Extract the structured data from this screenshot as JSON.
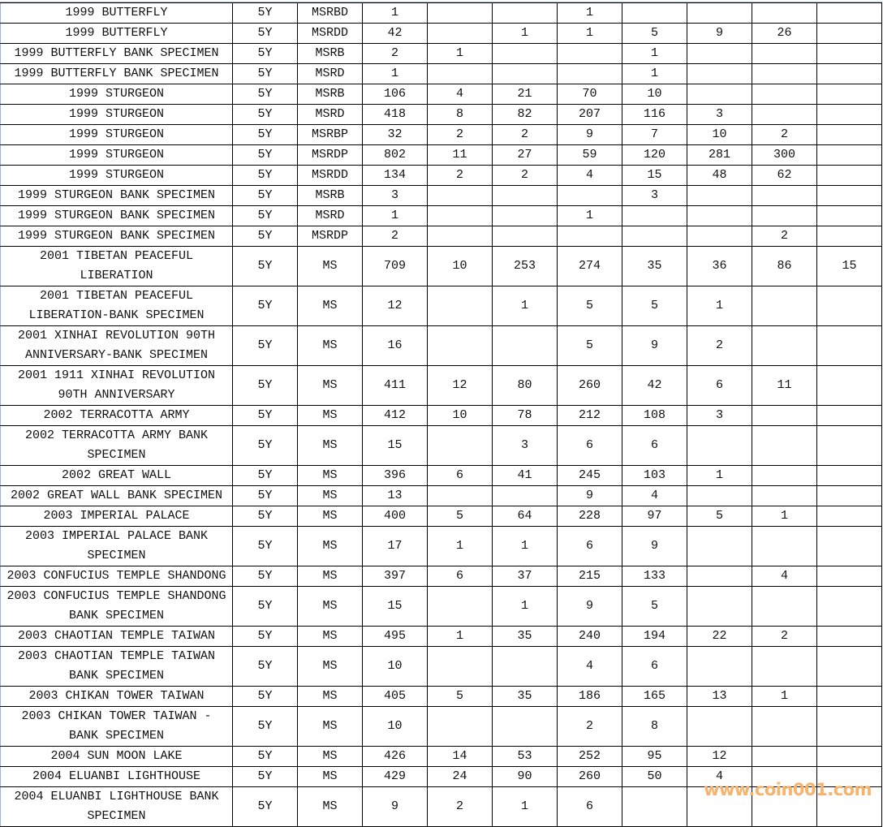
{
  "table": {
    "rows": [
      [
        "1999 BUTTERFLY",
        "5Y",
        "MSRBD",
        "1",
        "",
        "",
        "1",
        "",
        "",
        "",
        ""
      ],
      [
        "1999 BUTTERFLY",
        "5Y",
        "MSRDD",
        "42",
        "",
        "1",
        "1",
        "5",
        "9",
        "26",
        ""
      ],
      [
        "1999 BUTTERFLY BANK SPECIMEN",
        "5Y",
        "MSRB",
        "2",
        "1",
        "",
        "",
        "1",
        "",
        "",
        ""
      ],
      [
        "1999 BUTTERFLY BANK SPECIMEN",
        "5Y",
        "MSRD",
        "1",
        "",
        "",
        "",
        "1",
        "",
        "",
        ""
      ],
      [
        "1999 STURGEON",
        "5Y",
        "MSRB",
        "106",
        "4",
        "21",
        "70",
        "10",
        "",
        "",
        ""
      ],
      [
        "1999 STURGEON",
        "5Y",
        "MSRD",
        "418",
        "8",
        "82",
        "207",
        "116",
        "3",
        "",
        ""
      ],
      [
        "1999 STURGEON",
        "5Y",
        "MSRBP",
        "32",
        "2",
        "2",
        "9",
        "7",
        "10",
        "2",
        ""
      ],
      [
        "1999 STURGEON",
        "5Y",
        "MSRDP",
        "802",
        "11",
        "27",
        "59",
        "120",
        "281",
        "300",
        ""
      ],
      [
        "1999 STURGEON",
        "5Y",
        "MSRDD",
        "134",
        "2",
        "2",
        "4",
        "15",
        "48",
        "62",
        ""
      ],
      [
        "1999 STURGEON BANK SPECIMEN",
        "5Y",
        "MSRB",
        "3",
        "",
        "",
        "",
        "3",
        "",
        "",
        ""
      ],
      [
        "1999 STURGEON BANK SPECIMEN",
        "5Y",
        "MSRD",
        "1",
        "",
        "",
        "1",
        "",
        "",
        "",
        ""
      ],
      [
        "1999 STURGEON BANK SPECIMEN",
        "5Y",
        "MSRDP",
        "2",
        "",
        "",
        "",
        "",
        "",
        "2",
        ""
      ],
      [
        "2001 TIBETAN PEACEFUL LIBERATION",
        "5Y",
        "MS",
        "709",
        "10",
        "253",
        "274",
        "35",
        "36",
        "86",
        "15"
      ],
      [
        "2001 TIBETAN PEACEFUL LIBERATION-BANK SPECIMEN",
        "5Y",
        "MS",
        "12",
        "",
        "1",
        "5",
        "5",
        "1",
        "",
        ""
      ],
      [
        "2001 XINHAI REVOLUTION 90TH ANNIVERSARY-BANK SPECIMEN",
        "5Y",
        "MS",
        "16",
        "",
        "",
        "5",
        "9",
        "2",
        "",
        ""
      ],
      [
        "2001 1911 XINHAI REVOLUTION 90TH ANNIVERSARY",
        "5Y",
        "MS",
        "411",
        "12",
        "80",
        "260",
        "42",
        "6",
        "11",
        ""
      ],
      [
        "2002 TERRACOTTA ARMY",
        "5Y",
        "MS",
        "412",
        "10",
        "78",
        "212",
        "108",
        "3",
        "",
        ""
      ],
      [
        "2002 TERRACOTTA ARMY BANK SPECIMEN",
        "5Y",
        "MS",
        "15",
        "",
        "3",
        "6",
        "6",
        "",
        "",
        ""
      ],
      [
        "2002 GREAT WALL",
        "5Y",
        "MS",
        "396",
        "6",
        "41",
        "245",
        "103",
        "1",
        "",
        ""
      ],
      [
        "2002 GREAT WALL BANK SPECIMEN",
        "5Y",
        "MS",
        "13",
        "",
        "",
        "9",
        "4",
        "",
        "",
        ""
      ],
      [
        "2003 IMPERIAL PALACE",
        "5Y",
        "MS",
        "400",
        "5",
        "64",
        "228",
        "97",
        "5",
        "1",
        ""
      ],
      [
        "2003 IMPERIAL PALACE BANK SPECIMEN",
        "5Y",
        "MS",
        "17",
        "1",
        "1",
        "6",
        "9",
        "",
        "",
        ""
      ],
      [
        "2003 CONFUCIUS TEMPLE SHANDONG",
        "5Y",
        "MS",
        "397",
        "6",
        "37",
        "215",
        "133",
        "",
        "4",
        ""
      ],
      [
        "2003 CONFUCIUS TEMPLE SHANDONG BANK SPECIMEN",
        "5Y",
        "MS",
        "15",
        "",
        "1",
        "9",
        "5",
        "",
        "",
        ""
      ],
      [
        "2003 CHAOTIAN TEMPLE TAIWAN",
        "5Y",
        "MS",
        "495",
        "1",
        "35",
        "240",
        "194",
        "22",
        "2",
        ""
      ],
      [
        "2003 CHAOTIAN TEMPLE TAIWAN BANK SPECIMEN",
        "5Y",
        "MS",
        "10",
        "",
        "",
        "4",
        "6",
        "",
        "",
        ""
      ],
      [
        "2003 CHIKAN TOWER TAIWAN",
        "5Y",
        "MS",
        "405",
        "5",
        "35",
        "186",
        "165",
        "13",
        "1",
        ""
      ],
      [
        "2003 CHIKAN TOWER TAIWAN - BANK SPECIMEN",
        "5Y",
        "MS",
        "10",
        "",
        "",
        "2",
        "8",
        "",
        "",
        ""
      ],
      [
        "2004 SUN MOON LAKE",
        "5Y",
        "MS",
        "426",
        "14",
        "53",
        "252",
        "95",
        "12",
        "",
        ""
      ],
      [
        "2004 ELUANBI LIGHTHOUSE",
        "5Y",
        "MS",
        "429",
        "24",
        "90",
        "260",
        "50",
        "4",
        "",
        ""
      ],
      [
        "2004 ELUANBI LIGHTHOUSE BANK SPECIMEN",
        "5Y",
        "MS",
        "9",
        "2",
        "1",
        "6",
        "",
        "",
        "",
        ""
      ]
    ]
  },
  "watermark": "www.coin001.com"
}
